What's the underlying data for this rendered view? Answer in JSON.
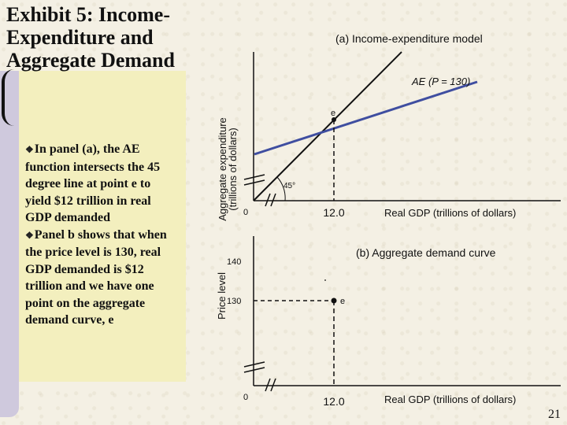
{
  "slide": {
    "title_lines": [
      "Exhibit 5: Income-",
      "Expenditure and",
      "Aggregate Demand"
    ],
    "bullets": [
      "In panel (a), the AE function intersects the 45 degree line at point e to yield $12 trillion in real GDP demanded",
      "Panel b shows that when the price level is 130, real GDP demanded is $12 trillion and we have one point on the aggregate demand curve, e"
    ],
    "page_number": "21"
  },
  "panel_a": {
    "title": "(a) Income-expenditure model",
    "ylabel_lines": [
      "Aggregate expenditure",
      "(trillions of dollars)"
    ],
    "ae_label": "AE (P = 130)",
    "point_label": "e",
    "angle_label": "45°",
    "origin_label": "0",
    "x_tick": "12.0",
    "xlabel": "Real GDP (trillions of dollars)",
    "colors": {
      "ae_line": "#3f4ea0",
      "degree_line": "#111111"
    }
  },
  "panel_b": {
    "title": "(b) Aggregate demand curve",
    "ylabel": "Price level",
    "y_ticks": [
      "140",
      "130"
    ],
    "point_label": "e",
    "origin_label": "0",
    "x_tick": "12.0",
    "xlabel": "Real GDP (trillions of dollars)"
  }
}
